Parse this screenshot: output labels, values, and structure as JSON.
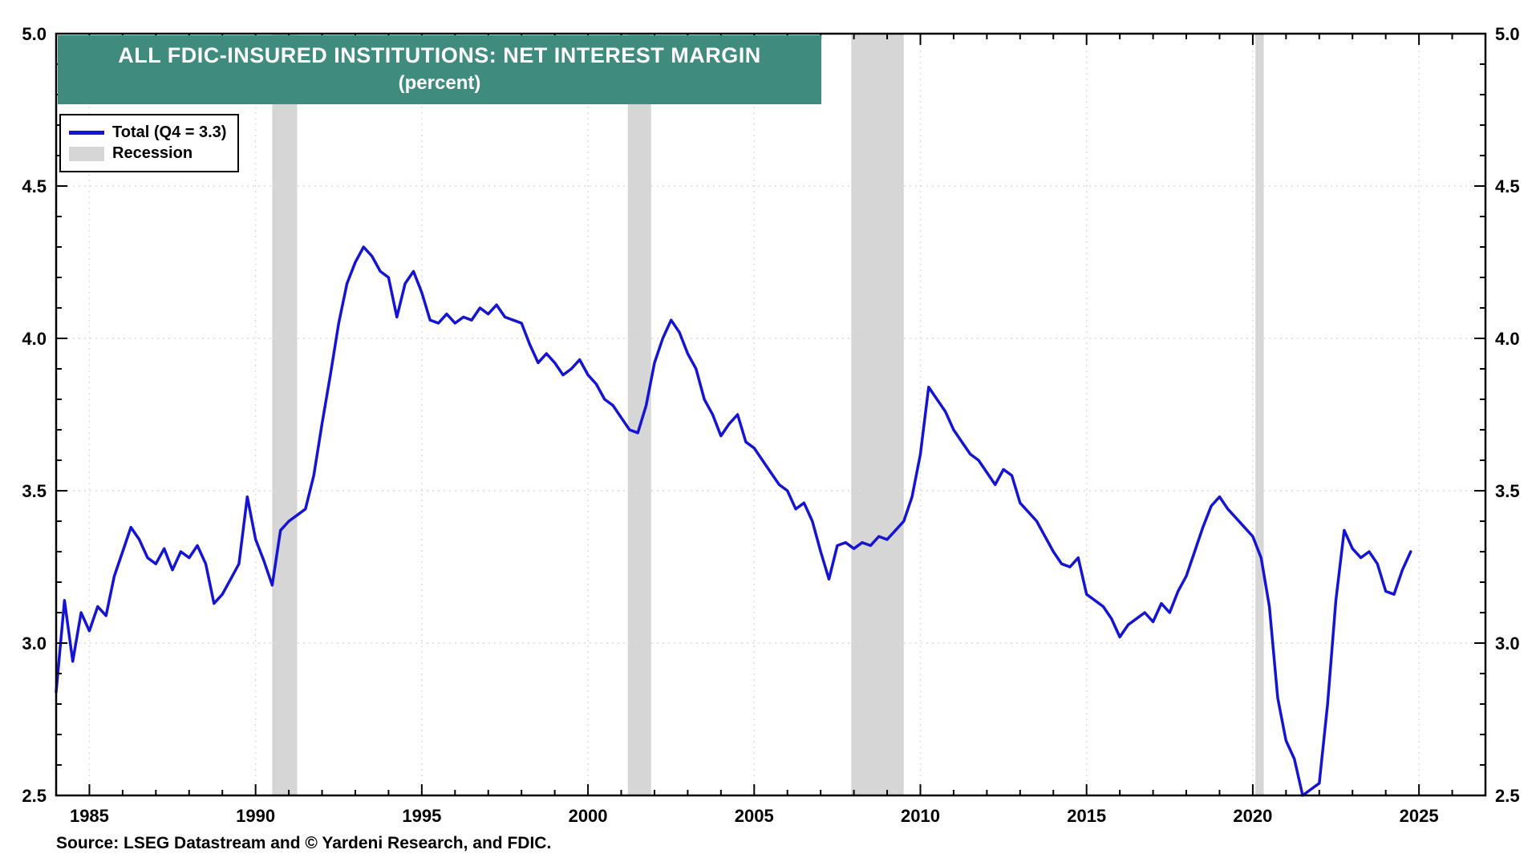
{
  "title": {
    "line1": "ALL FDIC-INSURED INSTITUTIONS: NET INTEREST MARGIN",
    "line2": "(percent)"
  },
  "legend": {
    "total_label": "Total (Q4 = 3.3)",
    "recession_label": "Recession"
  },
  "source": "Source: LSEG Datastream and © Yardeni Research, and FDIC.",
  "colors": {
    "line": "#1414d2",
    "recession": "#d6d6d6",
    "title_bg": "#3f8b7d",
    "grid": "#dcdcdc",
    "axis": "#000000"
  },
  "chart_data": {
    "type": "line",
    "title": "ALL FDIC-INSURED INSTITUTIONS: NET INTEREST MARGIN (percent)",
    "ylabel": "percent",
    "xlim": [
      1984,
      2027
    ],
    "ylim": [
      2.5,
      5.0
    ],
    "y_ticks": [
      2.5,
      3.0,
      3.5,
      4.0,
      4.5,
      5.0
    ],
    "x_ticks_major": [
      1985,
      1990,
      1995,
      2000,
      2005,
      2010,
      2015,
      2020,
      2025
    ],
    "grid": "dotted",
    "legend_position": "top-left",
    "recessions": [
      [
        1990.5,
        1991.25
      ],
      [
        2001.2,
        2001.9
      ],
      [
        2007.92,
        2009.5
      ],
      [
        2020.08,
        2020.33
      ]
    ],
    "series": [
      {
        "name": "Total",
        "start_year": 1984,
        "frequency": "quarterly",
        "last_point_label": "Q4 = 3.3",
        "values": [
          2.84,
          3.14,
          2.94,
          3.1,
          3.04,
          3.12,
          3.09,
          3.22,
          3.3,
          3.38,
          3.34,
          3.28,
          3.26,
          3.31,
          3.24,
          3.3,
          3.28,
          3.32,
          3.26,
          3.13,
          3.16,
          3.21,
          3.26,
          3.48,
          3.34,
          3.27,
          3.19,
          3.37,
          3.4,
          3.42,
          3.44,
          3.55,
          3.72,
          3.88,
          4.05,
          4.18,
          4.25,
          4.3,
          4.27,
          4.22,
          4.2,
          4.07,
          4.18,
          4.22,
          4.15,
          4.06,
          4.05,
          4.08,
          4.05,
          4.07,
          4.06,
          4.1,
          4.08,
          4.11,
          4.07,
          4.06,
          4.05,
          3.98,
          3.92,
          3.95,
          3.92,
          3.88,
          3.9,
          3.93,
          3.88,
          3.85,
          3.8,
          3.78,
          3.74,
          3.7,
          3.69,
          3.78,
          3.92,
          4.0,
          4.06,
          4.02,
          3.95,
          3.9,
          3.8,
          3.75,
          3.68,
          3.72,
          3.75,
          3.66,
          3.64,
          3.6,
          3.56,
          3.52,
          3.5,
          3.44,
          3.46,
          3.4,
          3.3,
          3.21,
          3.32,
          3.33,
          3.31,
          3.33,
          3.32,
          3.35,
          3.34,
          3.37,
          3.4,
          3.48,
          3.62,
          3.84,
          3.8,
          3.76,
          3.7,
          3.66,
          3.62,
          3.6,
          3.56,
          3.52,
          3.57,
          3.55,
          3.46,
          3.43,
          3.4,
          3.35,
          3.3,
          3.26,
          3.25,
          3.28,
          3.16,
          3.14,
          3.12,
          3.08,
          3.02,
          3.06,
          3.08,
          3.1,
          3.07,
          3.13,
          3.1,
          3.17,
          3.22,
          3.3,
          3.38,
          3.45,
          3.48,
          3.44,
          3.41,
          3.38,
          3.35,
          3.28,
          3.12,
          2.82,
          2.68,
          2.62,
          2.5,
          2.52,
          2.54,
          2.8,
          3.14,
          3.37,
          3.31,
          3.28,
          3.3,
          3.26,
          3.17,
          3.16,
          3.24,
          3.3
        ]
      }
    ]
  }
}
